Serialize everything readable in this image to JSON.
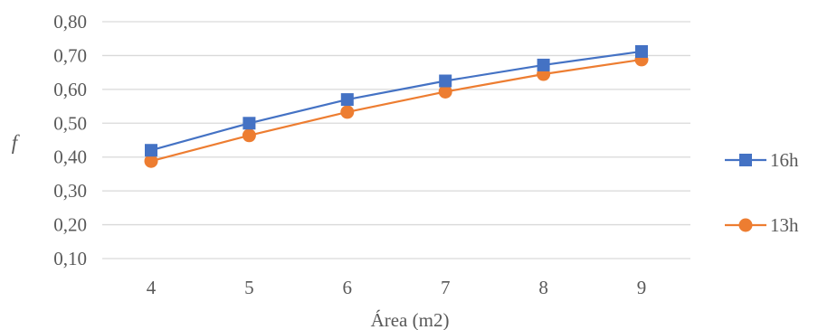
{
  "chart_data": {
    "type": "line",
    "title": "",
    "xlabel": "Área (m2)",
    "ylabel": "f",
    "x": [
      4,
      5,
      6,
      7,
      8,
      9
    ],
    "ylim": [
      0.1,
      0.8
    ],
    "yticks": [
      "0,10",
      "0,20",
      "0,30",
      "0,40",
      "0,50",
      "0,60",
      "0,70",
      "0,80"
    ],
    "xticks": [
      "4",
      "5",
      "6",
      "7",
      "8",
      "9"
    ],
    "grid": true,
    "legend_position": "right",
    "series": [
      {
        "name": "16h",
        "marker": "square",
        "color": "#4472C4",
        "values": [
          0.42,
          0.5,
          0.57,
          0.625,
          0.672,
          0.712
        ]
      },
      {
        "name": "13h",
        "marker": "circle",
        "color": "#ED7D31",
        "values": [
          0.388,
          0.464,
          0.533,
          0.593,
          0.645,
          0.688
        ]
      }
    ]
  }
}
